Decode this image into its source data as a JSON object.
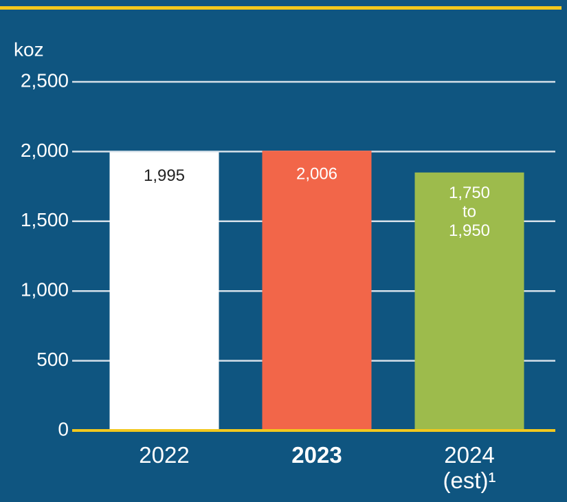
{
  "chart_data": {
    "type": "bar",
    "y_label": "koz",
    "categories": [
      "2022",
      "2023",
      "2024\n(est)¹"
    ],
    "values": [
      1995,
      2006,
      null
    ],
    "value_labels": [
      "1,995",
      "2,006",
      null
    ],
    "lows": [
      null,
      null,
      1750
    ],
    "highs": [
      null,
      null,
      1950
    ],
    "range_labels": [
      null,
      null,
      [
        "1,750",
        "to",
        "1,950"
      ]
    ],
    "colors": [
      "#ffffff",
      "#f26649",
      "#9dbb4c"
    ],
    "ylim": [
      0,
      2500
    ],
    "yticks": [
      0,
      500,
      {
        "value": 1000,
        "label": "1,000"
      },
      {
        "value": 1500,
        "label": "1,500"
      },
      {
        "value": 2000,
        "label": "2,000"
      },
      {
        "value": 2500,
        "label": "2,500"
      }
    ],
    "grid": true
  }
}
